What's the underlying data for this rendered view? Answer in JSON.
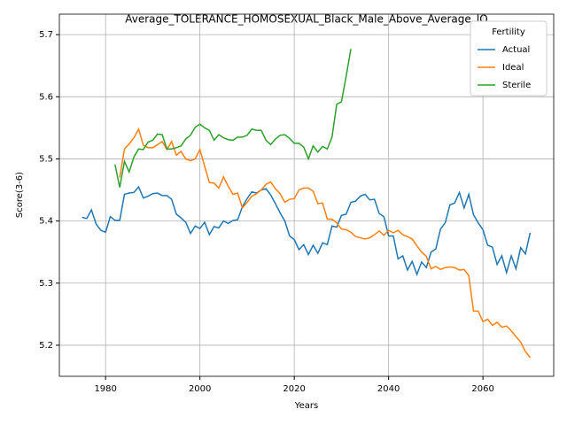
{
  "chart_data": {
    "type": "line",
    "title": "Average_TOLERANCE_HOMOSEXUAL_Black_Male_Above_Average_IQ",
    "x_label": "Years",
    "y_label": "Score(3-6)",
    "legend_title": "Fertility",
    "legend_position": "upper right",
    "grid": true,
    "xlim": [
      1970.2,
      2075
    ],
    "ylim": [
      5.15,
      5.733
    ],
    "xticks": [
      1980,
      2000,
      2020,
      2040,
      2060
    ],
    "yticks": [
      5.2,
      5.3,
      5.4,
      5.5,
      5.6,
      5.7
    ],
    "x": [
      1975,
      1976,
      1977,
      1978,
      1979,
      1980,
      1981,
      1982,
      1983,
      1984,
      1985,
      1986,
      1987,
      1988,
      1989,
      1990,
      1991,
      1992,
      1993,
      1994,
      1995,
      1996,
      1997,
      1998,
      1999,
      2000,
      2001,
      2002,
      2003,
      2004,
      2005,
      2006,
      2007,
      2008,
      2009,
      2010,
      2011,
      2012,
      2013,
      2014,
      2015,
      2016,
      2017,
      2018,
      2019,
      2020,
      2021,
      2022,
      2023,
      2024,
      2025,
      2026,
      2027,
      2028,
      2029,
      2030,
      2031,
      2032,
      2033,
      2034,
      2035,
      2036,
      2037,
      2038,
      2039,
      2040,
      2041,
      2042,
      2043,
      2044,
      2045,
      2046,
      2047,
      2048,
      2049,
      2050,
      2051,
      2052,
      2053,
      2054,
      2055,
      2056,
      2057,
      2058,
      2059,
      2060,
      2061,
      2062,
      2063,
      2064,
      2065,
      2066,
      2067,
      2068,
      2069,
      2070
    ],
    "series": [
      {
        "name": "Actual",
        "color": "#1f77b4",
        "values": [
          5.406,
          5.404,
          5.418,
          5.395,
          5.385,
          5.382,
          5.407,
          5.401,
          5.401,
          5.443,
          5.445,
          5.446,
          5.455,
          5.437,
          5.44,
          5.444,
          5.445,
          5.441,
          5.441,
          5.435,
          5.411,
          5.405,
          5.398,
          5.38,
          5.392,
          5.388,
          5.398,
          5.378,
          5.391,
          5.389,
          5.4,
          5.396,
          5.401,
          5.402,
          5.423,
          5.436,
          5.447,
          5.445,
          5.45,
          5.452,
          5.442,
          5.428,
          5.413,
          5.4,
          5.376,
          5.37,
          5.354,
          5.362,
          5.346,
          5.361,
          5.348,
          5.365,
          5.362,
          5.392,
          5.39,
          5.409,
          5.411,
          5.43,
          5.432,
          5.44,
          5.443,
          5.434,
          5.435,
          5.412,
          5.407,
          5.376,
          5.376,
          5.339,
          5.344,
          5.321,
          5.335,
          5.314,
          5.334,
          5.325,
          5.35,
          5.355,
          5.387,
          5.397,
          5.426,
          5.429,
          5.446,
          5.421,
          5.443,
          5.41,
          5.397,
          5.386,
          5.361,
          5.358,
          5.33,
          5.344,
          5.317,
          5.344,
          5.323,
          5.357,
          5.347,
          5.381
        ]
      },
      {
        "name": "Ideal",
        "color": "#ff7f0e",
        "values": [
          null,
          null,
          null,
          null,
          null,
          null,
          null,
          null,
          5.47,
          5.516,
          5.524,
          5.534,
          5.548,
          5.522,
          5.518,
          5.518,
          5.523,
          5.528,
          5.515,
          5.528,
          5.506,
          5.512,
          5.5,
          5.497,
          5.5,
          5.515,
          5.488,
          5.462,
          5.461,
          5.453,
          5.471,
          5.456,
          5.443,
          5.445,
          5.421,
          5.43,
          5.44,
          5.444,
          5.45,
          5.459,
          5.463,
          5.452,
          5.444,
          5.43,
          5.435,
          5.436,
          5.45,
          5.453,
          5.453,
          5.448,
          5.428,
          5.429,
          5.403,
          5.403,
          5.397,
          5.387,
          5.386,
          5.382,
          5.375,
          5.373,
          5.371,
          5.373,
          5.378,
          5.384,
          5.377,
          5.385,
          5.381,
          5.385,
          5.378,
          5.375,
          5.371,
          5.36,
          5.35,
          5.343,
          5.323,
          5.327,
          5.322,
          5.325,
          5.326,
          5.325,
          5.321,
          5.322,
          5.312,
          5.255,
          5.255,
          5.238,
          5.242,
          5.232,
          5.237,
          5.229,
          5.231,
          5.223,
          5.214,
          5.205,
          5.19,
          5.18
        ]
      },
      {
        "name": "Sterile",
        "color": "#2ca02c",
        "values": [
          null,
          null,
          null,
          null,
          null,
          null,
          null,
          5.491,
          5.454,
          5.496,
          5.479,
          5.503,
          5.516,
          5.515,
          5.527,
          5.53,
          5.54,
          5.539,
          5.516,
          5.516,
          5.518,
          5.521,
          5.532,
          5.538,
          5.551,
          5.556,
          5.55,
          5.546,
          5.53,
          5.539,
          5.534,
          5.531,
          5.53,
          5.535,
          5.535,
          5.538,
          5.548,
          5.546,
          5.546,
          5.53,
          5.523,
          5.532,
          5.538,
          5.539,
          5.533,
          5.525,
          5.525,
          5.519,
          5.5,
          5.521,
          5.511,
          5.52,
          5.516,
          5.535,
          5.588,
          5.592,
          5.633,
          5.677,
          null,
          null,
          null,
          null,
          null,
          null,
          null,
          null,
          null,
          null,
          null,
          null,
          null,
          null,
          null,
          null,
          null,
          null,
          null,
          null,
          null,
          null,
          null,
          null,
          null,
          null,
          null,
          null,
          null,
          null,
          null,
          null,
          null,
          null,
          null,
          null,
          null,
          null
        ]
      }
    ]
  }
}
